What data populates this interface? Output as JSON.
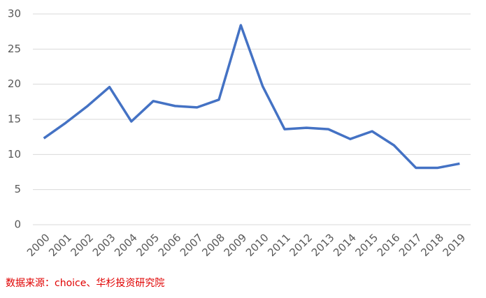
{
  "chart_data": {
    "type": "line",
    "categories": [
      "2000",
      "2001",
      "2002",
      "2003",
      "2004",
      "2005",
      "2006",
      "2007",
      "2008",
      "2009",
      "2010",
      "2011",
      "2012",
      "2013",
      "2014",
      "2015",
      "2016",
      "2017",
      "2018",
      "2019"
    ],
    "series": [
      {
        "color": "#4472c4",
        "values": [
          12.3,
          14.5,
          16.9,
          19.6,
          14.7,
          17.6,
          16.9,
          16.7,
          17.8,
          28.4,
          19.7,
          13.6,
          13.8,
          13.6,
          12.2,
          13.3,
          11.3,
          8.1,
          8.1,
          8.7
        ]
      }
    ],
    "ylim": [
      0,
      30
    ],
    "yticks": [
      0,
      5,
      10,
      15,
      20,
      25,
      30
    ],
    "grid": true,
    "source": "数据来源：choice、华杉投资研究院"
  }
}
